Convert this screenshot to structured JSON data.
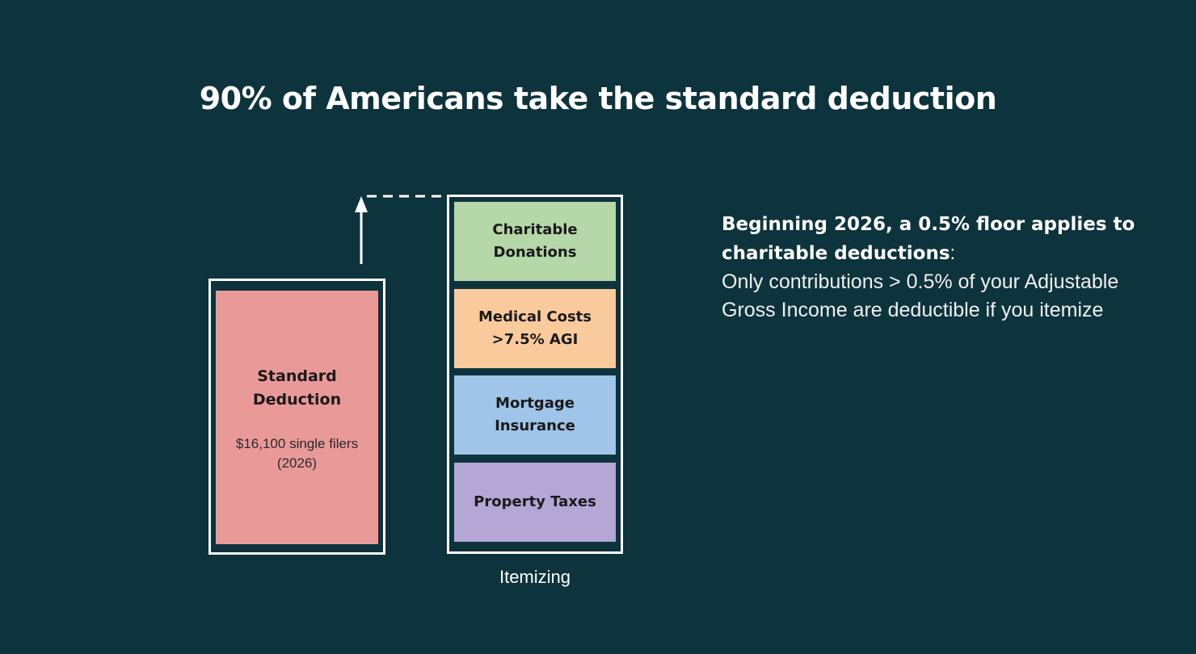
{
  "title": "90% of Americans take the standard deduction",
  "standard": {
    "label": "Standard\nDeduction",
    "detail": "$16,100 single filers\n(2026)",
    "color": "#ea9999"
  },
  "itemizing": {
    "label": "Itemizing",
    "items": [
      {
        "label": "Charitable\nDonations",
        "color": "#b6d7a8"
      },
      {
        "label": "Medical Costs\n>7.5% AGI",
        "color": "#f9cb9c"
      },
      {
        "label": "Mortgage\nInsurance",
        "color": "#9fc5e8"
      },
      {
        "label": "Property Taxes",
        "color": "#b4a7d6"
      }
    ]
  },
  "note": {
    "heading": "Beginning 2026, a 0.5% floor applies to charitable deductions",
    "colon": ":",
    "body": "Only contributions > 0.5% of your Adjustable Gross Income are deductible if you itemize"
  },
  "colors": {
    "background": "#0d333d",
    "frame": "#ffffff"
  }
}
